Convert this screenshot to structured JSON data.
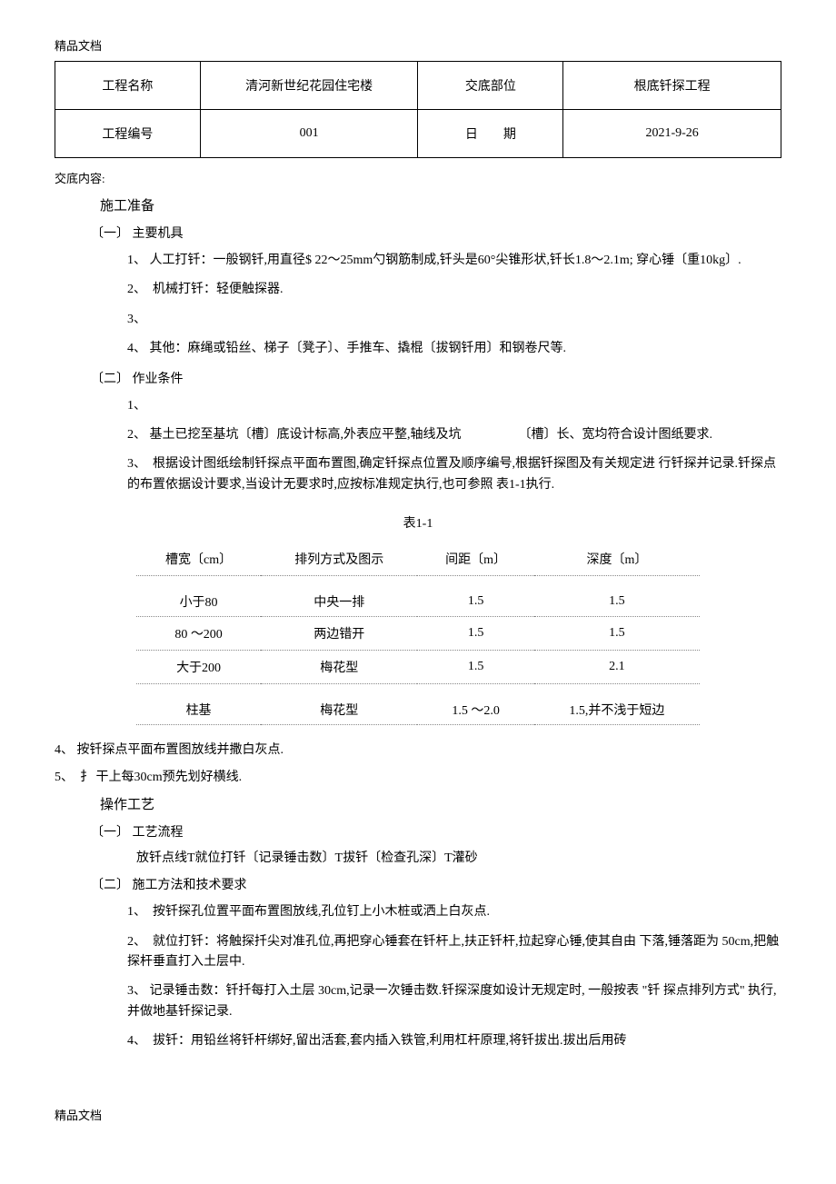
{
  "header_label": "精品文档",
  "footer_label": "精品文档",
  "info_table": {
    "row1": {
      "label1": "工程名称",
      "value1": "清河新世纪花园住宅楼",
      "label2": "交底部位",
      "value2": "根底钎探工程"
    },
    "row2": {
      "label1": "工程编号",
      "value1": "001",
      "label2": "日　　期",
      "value2": "2021-9-26"
    }
  },
  "jiaodi_label": "交底内容:",
  "section1": {
    "title": "施工准备",
    "sub1": {
      "heading": "〔一〕 主要机具",
      "items": [
        "1、 人工打钎：一般钢钎,用直径$ 22〜25mm勺钢筋制成,钎头是60°尖锥形状,钎长1.8〜2.1m; 穿心锤〔重10kg〕.",
        "2、　机械打钎：轻便触探器.",
        "3、",
        "4、 其他：麻绳或铅丝、梯子〔凳子〕、手推车、撬棍〔拔钢钎用〕和钢卷尺等."
      ]
    },
    "sub2": {
      "heading": "〔二〕 作业条件",
      "items": [
        "1、",
        "2、 基土已挖至基坑〔槽〕底设计标高,外表应平整,轴线及坑　　　　　〔槽〕长、宽均符合设计图纸要求.",
        "3、　根据设计图纸绘制钎探点平面布置图,确定钎探点位置及顺序编号,根据钎探图及有关规定进 行钎探并记录.钎探点的布置依据设计要求,当设计无要求时,应按标准规定执行,也可参照 表1-1执行."
      ]
    }
  },
  "table1": {
    "title": "表1-1",
    "headers": [
      "槽宽〔cm〕",
      "排列方式及图示",
      "间距〔m〕",
      "深度〔m〕"
    ],
    "rows": [
      [
        "小于80",
        "中央一排",
        "1.5",
        "1.5"
      ],
      [
        "80 〜200",
        "两边错开",
        "1.5",
        "1.5"
      ],
      [
        "大于200",
        "梅花型",
        "1.5",
        "2.1"
      ],
      [
        "柱基",
        "梅花型",
        "1.5 〜2.0",
        "1.5,并不浅于短边"
      ]
    ]
  },
  "outer_items": [
    "4、 按钎探点平面布置图放线并撒白灰点.",
    "5、　扌 干上每30cm预先划好横线."
  ],
  "section2": {
    "title": "操作工艺",
    "sub1": {
      "heading": "〔一〕 工艺流程",
      "flow": "放钎点线T就位打钎〔记录锤击数〕T拔钎〔检查孔深〕T灌砂"
    },
    "sub2": {
      "heading": "〔二〕 施工方法和技术要求",
      "items": [
        "1、　按钎探孔位置平面布置图放线,孔位钉上小木桩或洒上白灰点.",
        "2、　就位打钎：将触探扦尖对准孔位,再把穿心锤套在钎杆上,扶正钎杆,拉起穿心锤,使其自由 下落,锤落距为 50cm,把触探杆垂直打入土层中.",
        "3、 记录锤击数：钎扦每打入土层 30cm,记录一次锤击数.钎探深度如设计无规定时, 一般按表 \"钎 探点排列方式\" 执行,并做地基钎探记录.",
        "4、　拔钎：用铅丝将钎杆绑好,留出活套,套内插入铁管,利用杠杆原理,将钎拔出.拔出后用砖"
      ]
    }
  }
}
